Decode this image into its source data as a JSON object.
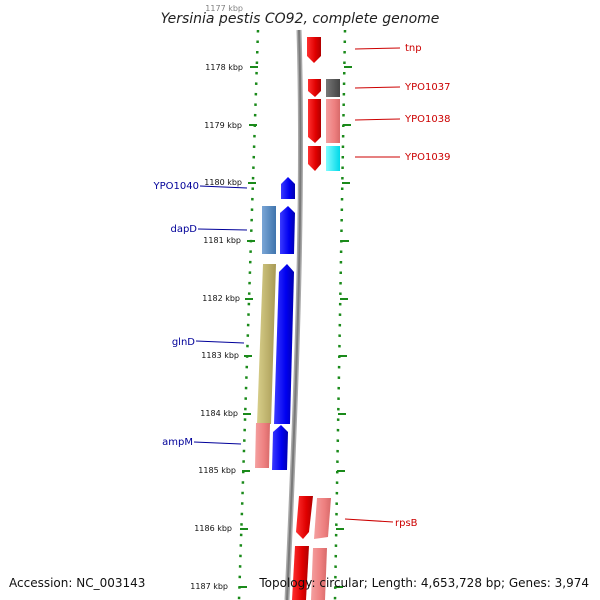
{
  "title": "Yersinia pestis CO92, complete genome",
  "footer": {
    "accession": "Accession: NC_003143",
    "topology": "Topology: circular; Length: 4,653,728 bp; Genes: 3,974"
  },
  "scale_labels": [
    "1177 kbp",
    "1178 kbp",
    "1179 kbp",
    "1180 kbp",
    "1181 kbp",
    "1182 kbp",
    "1183 kbp",
    "1184 kbp",
    "1185 kbp",
    "1186 kbp",
    "1187 kbp"
  ],
  "colors": {
    "forward_gene": "#ff0000",
    "forward_gene_light": "#f08080",
    "reverse_gene": "#0000ff",
    "gene_label_right": "#cc0000",
    "gene_label_left": "#000099",
    "backbone": "#888888",
    "dots": "#1a8a1a"
  },
  "gene_labels": [
    {
      "name": "tnp",
      "side": "right"
    },
    {
      "name": "YPO1037",
      "side": "right"
    },
    {
      "name": "YPO1038",
      "side": "right"
    },
    {
      "name": "YPO1039",
      "side": "right"
    },
    {
      "name": "YPO1040",
      "side": "left"
    },
    {
      "name": "dapD",
      "side": "left"
    },
    {
      "name": "glnD",
      "side": "left"
    },
    {
      "name": "ampM",
      "side": "left"
    },
    {
      "name": "rpsB",
      "side": "right"
    }
  ]
}
